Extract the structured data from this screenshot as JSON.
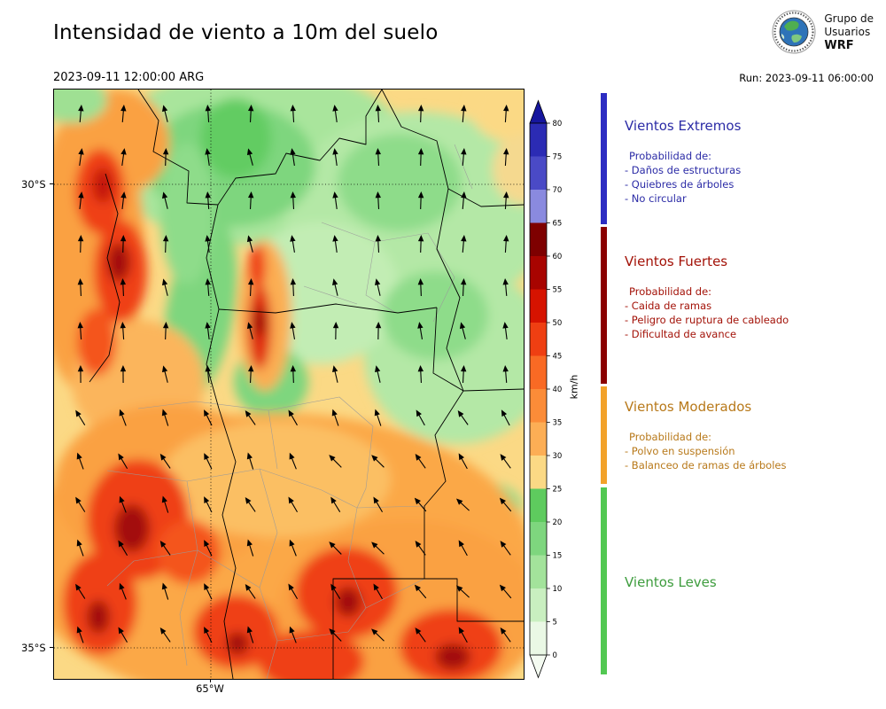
{
  "header": {
    "title": "Intensidad de viento a 10m del suelo",
    "valid_time": "2023-09-11 12:00:00 ARG",
    "run_label": "Run: 2023-09-11 06:00:00",
    "logo": {
      "line1": "Grupo de",
      "line2": "Usuarios",
      "line3": "WRF"
    }
  },
  "map": {
    "lat_labels": [
      "30°S",
      "35°S"
    ],
    "lon_labels": [
      "65°W"
    ]
  },
  "colorbar": {
    "unit": "km/h",
    "over_color": "#16169e",
    "under_color": "#f4fbf1",
    "ticks": [
      "80",
      "75",
      "70",
      "65",
      "60",
      "55",
      "50",
      "45",
      "40",
      "35",
      "30",
      "25",
      "20",
      "15",
      "10",
      "5",
      "0"
    ],
    "segments": [
      {
        "range": "75-80",
        "color": "#2b2bb4"
      },
      {
        "range": "70-75",
        "color": "#4a4ac6"
      },
      {
        "range": "65-70",
        "color": "#8a8adf"
      },
      {
        "range": "60-65",
        "color": "#7e0000"
      },
      {
        "range": "55-60",
        "color": "#a80400"
      },
      {
        "range": "50-55",
        "color": "#d61300"
      },
      {
        "range": "45-50",
        "color": "#ef3f12"
      },
      {
        "range": "40-45",
        "color": "#f96a24"
      },
      {
        "range": "35-40",
        "color": "#fb8c38"
      },
      {
        "range": "30-35",
        "color": "#fcae55"
      },
      {
        "range": "25-30",
        "color": "#fbd985"
      },
      {
        "range": "20-25",
        "color": "#5ecb5e"
      },
      {
        "range": "15-20",
        "color": "#7ed67e"
      },
      {
        "range": "10-15",
        "color": "#a3e39b"
      },
      {
        "range": "5-10",
        "color": "#c9efc0"
      },
      {
        "range": "0-5",
        "color": "#eaf8e5"
      }
    ]
  },
  "legend": {
    "sections": [
      {
        "name": "Vientos Extremos",
        "prob_label": "Probabilidad de:",
        "items": [
          "- Daños de estructuras",
          "- Quiebres de árboles",
          "- No circular"
        ],
        "bar_color": "#2d2dc2",
        "text_color": "#2b2ba6"
      },
      {
        "name": "Vientos Fuertes",
        "prob_label": "Probabilidad de:",
        "items": [
          "- Caida de ramas",
          "- Peligro de ruptura de cableado",
          "- Dificultad de avance"
        ],
        "bar_color": "#8b0000",
        "text_color": "#a31208"
      },
      {
        "name": "Vientos Moderados",
        "prob_label": "Probabilidad de:",
        "items": [
          "- Polvo en suspensión",
          "- Balanceo de ramas de árboles"
        ],
        "bar_color": "#f2a22a",
        "text_color": "#b8791a"
      },
      {
        "name": "Vientos Leves",
        "prob_label": "",
        "items": [],
        "bar_color": "#52c852",
        "text_color": "#3d9c3d"
      }
    ]
  }
}
